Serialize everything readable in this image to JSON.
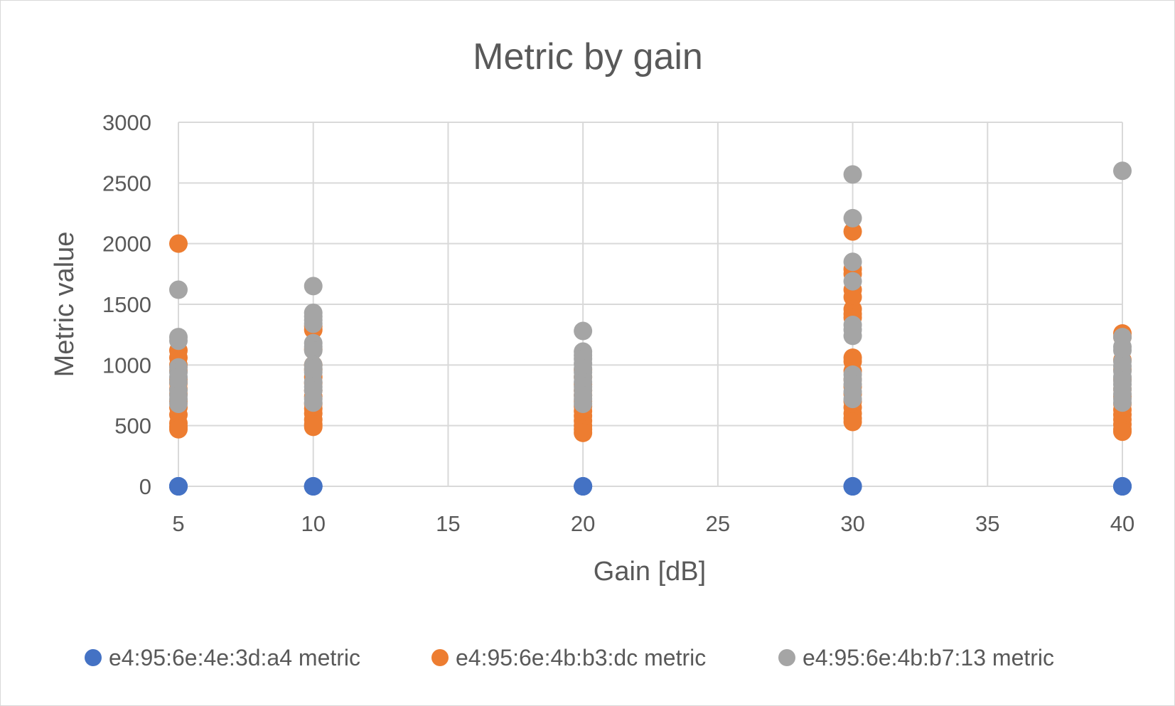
{
  "chart_data": {
    "type": "scatter",
    "title": "Metric by gain",
    "xlabel": "Gain [dB]",
    "ylabel": "Metric value",
    "xlim": [
      5,
      40
    ],
    "ylim": [
      0,
      3000
    ],
    "x_ticks": [
      5,
      10,
      15,
      20,
      25,
      30,
      35,
      40
    ],
    "y_ticks": [
      0,
      500,
      1000,
      1500,
      2000,
      2500,
      3000
    ],
    "grid": true,
    "legend_position": "bottom",
    "series": [
      {
        "name": "e4:95:6e:4e:3d:a4 metric",
        "color": "#4472c4",
        "points": [
          [
            5,
            0
          ],
          [
            5,
            0
          ],
          [
            5,
            0
          ],
          [
            5,
            0
          ],
          [
            10,
            0
          ],
          [
            10,
            0
          ],
          [
            10,
            0
          ],
          [
            20,
            0
          ],
          [
            20,
            0
          ],
          [
            20,
            0
          ],
          [
            30,
            0
          ],
          [
            30,
            0
          ],
          [
            30,
            0
          ],
          [
            40,
            0
          ],
          [
            40,
            0
          ],
          [
            40,
            0
          ]
        ]
      },
      {
        "name": "e4:95:6e:4b:b3:dc metric",
        "color": "#ed7d31",
        "points": [
          [
            5,
            2000
          ],
          [
            5,
            1120
          ],
          [
            5,
            1060
          ],
          [
            5,
            1000
          ],
          [
            5,
            950
          ],
          [
            5,
            880
          ],
          [
            5,
            850
          ],
          [
            5,
            800
          ],
          [
            5,
            760
          ],
          [
            5,
            700
          ],
          [
            5,
            650
          ],
          [
            5,
            590
          ],
          [
            5,
            520
          ],
          [
            5,
            490
          ],
          [
            5,
            470
          ],
          [
            10,
            1320
          ],
          [
            10,
            1290
          ],
          [
            10,
            1130
          ],
          [
            10,
            1000
          ],
          [
            10,
            960
          ],
          [
            10,
            900
          ],
          [
            10,
            850
          ],
          [
            10,
            790
          ],
          [
            10,
            740
          ],
          [
            10,
            680
          ],
          [
            10,
            640
          ],
          [
            10,
            600
          ],
          [
            10,
            550
          ],
          [
            10,
            510
          ],
          [
            10,
            490
          ],
          [
            20,
            960
          ],
          [
            20,
            900
          ],
          [
            20,
            840
          ],
          [
            20,
            790
          ],
          [
            20,
            750
          ],
          [
            20,
            700
          ],
          [
            20,
            660
          ],
          [
            20,
            620
          ],
          [
            20,
            580
          ],
          [
            20,
            540
          ],
          [
            20,
            500
          ],
          [
            20,
            470
          ],
          [
            20,
            440
          ],
          [
            30,
            2100
          ],
          [
            30,
            1790
          ],
          [
            30,
            1750
          ],
          [
            30,
            1620
          ],
          [
            30,
            1560
          ],
          [
            30,
            1460
          ],
          [
            30,
            1420
          ],
          [
            30,
            1390
          ],
          [
            30,
            1060
          ],
          [
            30,
            1030
          ],
          [
            30,
            950
          ],
          [
            30,
            880
          ],
          [
            30,
            820
          ],
          [
            30,
            760
          ],
          [
            30,
            700
          ],
          [
            30,
            650
          ],
          [
            30,
            600
          ],
          [
            30,
            560
          ],
          [
            30,
            530
          ],
          [
            40,
            1260
          ],
          [
            40,
            1230
          ],
          [
            40,
            1040
          ],
          [
            40,
            960
          ],
          [
            40,
            880
          ],
          [
            40,
            800
          ],
          [
            40,
            740
          ],
          [
            40,
            680
          ],
          [
            40,
            630
          ],
          [
            40,
            590
          ],
          [
            40,
            550
          ],
          [
            40,
            510
          ],
          [
            40,
            470
          ],
          [
            40,
            450
          ]
        ]
      },
      {
        "name": "e4:95:6e:4b:b7:13 metric",
        "color": "#a5a5a5",
        "points": [
          [
            5,
            1620
          ],
          [
            5,
            1230
          ],
          [
            5,
            1200
          ],
          [
            5,
            980
          ],
          [
            5,
            940
          ],
          [
            5,
            900
          ],
          [
            5,
            860
          ],
          [
            5,
            790
          ],
          [
            5,
            750
          ],
          [
            5,
            720
          ],
          [
            5,
            680
          ],
          [
            10,
            1650
          ],
          [
            10,
            1430
          ],
          [
            10,
            1400
          ],
          [
            10,
            1370
          ],
          [
            10,
            1340
          ],
          [
            10,
            1180
          ],
          [
            10,
            1150
          ],
          [
            10,
            1120
          ],
          [
            10,
            1000
          ],
          [
            10,
            970
          ],
          [
            10,
            940
          ],
          [
            10,
            860
          ],
          [
            10,
            820
          ],
          [
            10,
            790
          ],
          [
            10,
            720
          ],
          [
            10,
            690
          ],
          [
            20,
            1280
          ],
          [
            20,
            1110
          ],
          [
            20,
            1080
          ],
          [
            20,
            1050
          ],
          [
            20,
            1010
          ],
          [
            20,
            970
          ],
          [
            20,
            940
          ],
          [
            20,
            900
          ],
          [
            20,
            860
          ],
          [
            20,
            820
          ],
          [
            20,
            790
          ],
          [
            20,
            750
          ],
          [
            20,
            720
          ],
          [
            20,
            680
          ],
          [
            30,
            2570
          ],
          [
            30,
            2210
          ],
          [
            30,
            1850
          ],
          [
            30,
            1690
          ],
          [
            30,
            1330
          ],
          [
            30,
            1290
          ],
          [
            30,
            1240
          ],
          [
            30,
            920
          ],
          [
            30,
            880
          ],
          [
            30,
            840
          ],
          [
            30,
            780
          ],
          [
            30,
            720
          ],
          [
            40,
            2600
          ],
          [
            40,
            1230
          ],
          [
            40,
            1150
          ],
          [
            40,
            1120
          ],
          [
            40,
            1030
          ],
          [
            40,
            990
          ],
          [
            40,
            950
          ],
          [
            40,
            900
          ],
          [
            40,
            870
          ],
          [
            40,
            840
          ],
          [
            40,
            800
          ],
          [
            40,
            760
          ],
          [
            40,
            720
          ],
          [
            40,
            690
          ]
        ]
      }
    ]
  }
}
